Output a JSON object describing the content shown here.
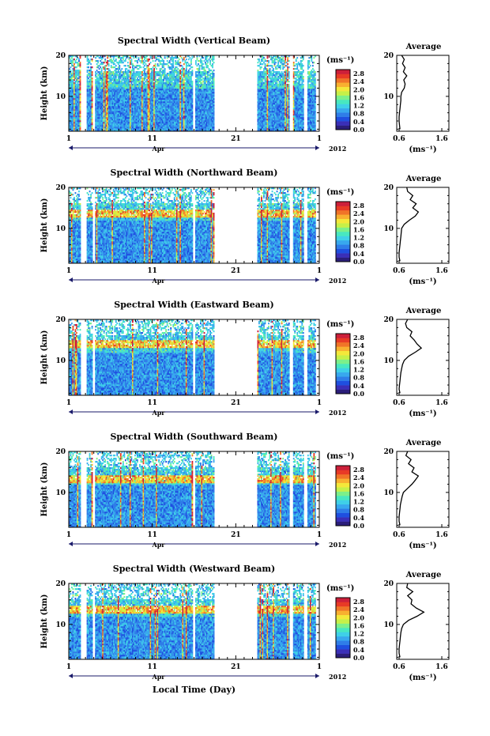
{
  "chart_data": [
    {
      "type": "heatmap",
      "title": "Spectral Width (Vertical Beam)",
      "ylabel": "Height (km)",
      "y_ticks": [
        "10",
        "20"
      ],
      "x_ticks": [
        "1",
        "11",
        "21",
        "1"
      ],
      "month_label": "Apr",
      "year_label": "2012",
      "colorbar_unit": "(ms⁻¹)",
      "colorbar_ticks": [
        "0.0",
        "0.4",
        "0.8",
        "1.2",
        "1.6",
        "2.0",
        "2.4",
        "2.8"
      ],
      "xlim_days": [
        1,
        31
      ],
      "ylim_km": [
        1.5,
        20
      ],
      "average_profile": {
        "title": "Average",
        "x_ticks": [
          "0.6",
          "1.6"
        ],
        "xlabel": "(ms⁻¹)",
        "y_ticks": [
          "10",
          "20"
        ],
        "height_km": [
          2,
          3,
          4,
          5,
          6,
          7,
          8,
          9,
          10,
          11,
          12,
          13,
          14,
          15,
          16,
          17,
          18,
          19,
          20
        ],
        "width_ms": [
          0.62,
          0.61,
          0.6,
          0.6,
          0.61,
          0.62,
          0.63,
          0.64,
          0.64,
          0.66,
          0.72,
          0.74,
          0.71,
          0.78,
          0.7,
          0.74,
          0.68,
          0.72,
          0.66
        ]
      }
    },
    {
      "type": "heatmap",
      "title": "Spectral Width (Northward Beam)",
      "ylabel": "Height (km)",
      "y_ticks": [
        "10",
        "20"
      ],
      "x_ticks": [
        "1",
        "11",
        "21",
        "1"
      ],
      "month_label": "Apr",
      "year_label": "2012",
      "colorbar_unit": "(ms⁻¹)",
      "colorbar_ticks": [
        "0.0",
        "0.4",
        "0.8",
        "1.2",
        "1.6",
        "2.0",
        "2.4",
        "2.8"
      ],
      "xlim_days": [
        1,
        31
      ],
      "ylim_km": [
        1.5,
        20
      ],
      "average_profile": {
        "title": "Average",
        "x_ticks": [
          "0.6",
          "1.6"
        ],
        "xlabel": "(ms⁻¹)",
        "y_ticks": [
          "10",
          "20"
        ],
        "height_km": [
          2,
          3,
          4,
          5,
          6,
          7,
          8,
          9,
          10,
          11,
          12,
          13,
          14,
          15,
          16,
          17,
          18,
          19,
          20
        ],
        "width_ms": [
          0.62,
          0.6,
          0.6,
          0.61,
          0.62,
          0.63,
          0.64,
          0.65,
          0.66,
          0.72,
          0.84,
          0.98,
          1.05,
          0.92,
          1.0,
          0.86,
          0.92,
          0.8,
          0.78
        ]
      }
    },
    {
      "type": "heatmap",
      "title": "Spectral Width (Eastward Beam)",
      "ylabel": "Height (km)",
      "y_ticks": [
        "10",
        "20"
      ],
      "x_ticks": [
        "1",
        "11",
        "21",
        "1"
      ],
      "month_label": "Apr",
      "year_label": "2012",
      "colorbar_unit": "(ms⁻¹)",
      "colorbar_ticks": [
        "0.0",
        "0.4",
        "0.8",
        "1.2",
        "1.6",
        "2.0",
        "2.4",
        "2.8"
      ],
      "xlim_days": [
        1,
        31
      ],
      "ylim_km": [
        1.5,
        20
      ],
      "average_profile": {
        "title": "Average",
        "x_ticks": [
          "0.6",
          "1.6"
        ],
        "xlabel": "(ms⁻¹)",
        "y_ticks": [
          "10",
          "20"
        ],
        "height_km": [
          2,
          3,
          4,
          5,
          6,
          7,
          8,
          9,
          10,
          11,
          12,
          13,
          14,
          15,
          16,
          17,
          18,
          19,
          20
        ],
        "width_ms": [
          0.62,
          0.6,
          0.61,
          0.62,
          0.63,
          0.64,
          0.66,
          0.68,
          0.72,
          0.82,
          0.98,
          1.12,
          1.02,
          0.95,
          0.86,
          0.9,
          0.78,
          0.75,
          0.8
        ]
      }
    },
    {
      "type": "heatmap",
      "title": "Spectral Width (Southward Beam)",
      "ylabel": "Height (km)",
      "y_ticks": [
        "10",
        "20"
      ],
      "x_ticks": [
        "1",
        "11",
        "21",
        "1"
      ],
      "month_label": "Apr",
      "year_label": "2012",
      "colorbar_unit": "(ms⁻¹)",
      "colorbar_ticks": [
        "0.0",
        "0.4",
        "0.8",
        "1.2",
        "1.6",
        "2.0",
        "2.4",
        "2.8"
      ],
      "xlim_days": [
        1,
        31
      ],
      "ylim_km": [
        1.5,
        20
      ],
      "average_profile": {
        "title": "Average",
        "x_ticks": [
          "0.6",
          "1.6"
        ],
        "xlabel": "(ms⁻¹)",
        "y_ticks": [
          "10",
          "20"
        ],
        "height_km": [
          2,
          3,
          4,
          5,
          6,
          7,
          8,
          9,
          10,
          11,
          12,
          13,
          14,
          15,
          16,
          17,
          18,
          19,
          20
        ],
        "width_ms": [
          0.62,
          0.6,
          0.6,
          0.61,
          0.62,
          0.63,
          0.65,
          0.67,
          0.7,
          0.8,
          0.9,
          0.98,
          1.05,
          0.9,
          0.95,
          0.82,
          0.88,
          0.76,
          0.8
        ]
      }
    },
    {
      "type": "heatmap",
      "title": "Spectral Width (Westward Beam)",
      "ylabel": "Height (km)",
      "xlabel": "Local Time (Day)",
      "y_ticks": [
        "10",
        "20"
      ],
      "x_ticks": [
        "1",
        "11",
        "21",
        "1"
      ],
      "month_label": "Apr",
      "year_label": "2012",
      "colorbar_unit": "(ms⁻¹)",
      "colorbar_ticks": [
        "0.0",
        "0.4",
        "0.8",
        "1.2",
        "1.6",
        "2.0",
        "2.4",
        "2.8"
      ],
      "xlim_days": [
        1,
        31
      ],
      "ylim_km": [
        1.5,
        20
      ],
      "average_profile": {
        "title": "Average",
        "x_ticks": [
          "0.6",
          "1.6"
        ],
        "xlabel": "(ms⁻¹)",
        "y_ticks": [
          "10",
          "20"
        ],
        "height_km": [
          2,
          3,
          4,
          5,
          6,
          7,
          8,
          9,
          10,
          11,
          12,
          13,
          14,
          15,
          16,
          17,
          18,
          19,
          20
        ],
        "width_ms": [
          0.62,
          0.6,
          0.6,
          0.61,
          0.62,
          0.63,
          0.64,
          0.66,
          0.7,
          0.82,
          1.02,
          1.18,
          1.0,
          0.88,
          0.9,
          0.8,
          0.92,
          0.78,
          0.8
        ]
      }
    }
  ],
  "data_gaps_days": [
    [
      2.5,
      3.2
    ],
    [
      3.9,
      4.1
    ],
    [
      15.9,
      16.2
    ],
    [
      18.4,
      23.5
    ],
    [
      27.4,
      27.8
    ],
    [
      29.2,
      29.6
    ],
    [
      30.6,
      31
    ]
  ],
  "colorscale": [
    "#2b1e7a",
    "#3a2fb8",
    "#1f4fe0",
    "#2f7de8",
    "#38a8ee",
    "#3fd0e8",
    "#48e8c0",
    "#7cf08a",
    "#c6f048",
    "#f4e83a",
    "#f8b030",
    "#f07428",
    "#e83a26",
    "#cc1f3a"
  ]
}
